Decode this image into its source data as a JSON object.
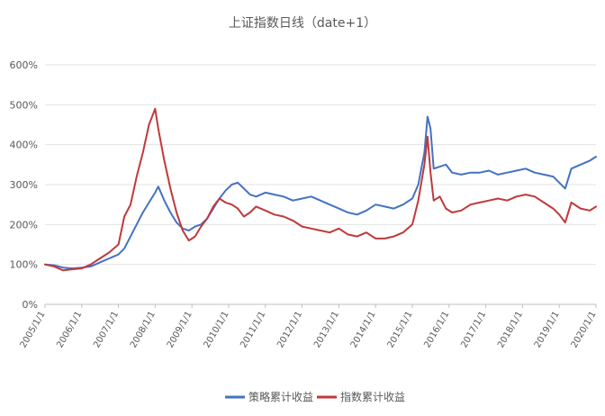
{
  "chart_data": {
    "type": "line",
    "title": "上证指数日线（date+1）",
    "xlabel": "",
    "ylabel": "",
    "ylim": [
      0,
      600
    ],
    "ytick_labels": [
      "0%",
      "100%",
      "200%",
      "300%",
      "400%",
      "500%",
      "600%"
    ],
    "grid": true,
    "legend_position": "bottom",
    "x_range": [
      "2005/1/1",
      "2020/1/1"
    ],
    "x_tick_labels": [
      "2005/1/1",
      "2006/1/1",
      "2007/1/1",
      "2008/1/1",
      "2009/1/1",
      "2010/1/1",
      "2011/1/1",
      "2012/1/1",
      "2013/1/1",
      "2014/1/1",
      "2015/1/1",
      "2016/1/1",
      "2017/1/1",
      "2018/1/1",
      "2019/1/1",
      "2020/1/1"
    ],
    "series": [
      {
        "name": "策略累计收益",
        "color": "#4472c4",
        "x": [
          "2005/1/1",
          "2005/4/1",
          "2005/7/1",
          "2005/10/1",
          "2006/1/1",
          "2006/4/1",
          "2006/7/1",
          "2006/10/1",
          "2007/1/1",
          "2007/3/1",
          "2007/5/1",
          "2007/7/1",
          "2007/9/1",
          "2007/11/1",
          "2008/1/1",
          "2008/2/1",
          "2008/4/1",
          "2008/6/1",
          "2008/8/1",
          "2008/10/1",
          "2008/12/1",
          "2009/2/1",
          "2009/4/1",
          "2009/6/1",
          "2009/8/1",
          "2009/10/1",
          "2009/12/1",
          "2010/2/1",
          "2010/4/1",
          "2010/6/1",
          "2010/8/1",
          "2010/10/1",
          "2011/1/1",
          "2011/4/1",
          "2011/7/1",
          "2011/10/1",
          "2012/1/1",
          "2012/4/1",
          "2012/7/1",
          "2012/10/1",
          "2013/1/1",
          "2013/4/1",
          "2013/7/1",
          "2013/10/1",
          "2014/1/1",
          "2014/4/1",
          "2014/7/1",
          "2014/10/1",
          "2015/1/1",
          "2015/3/1",
          "2015/5/1",
          "2015/6/1",
          "2015/7/1",
          "2015/8/1",
          "2015/10/1",
          "2015/12/1",
          "2016/2/1",
          "2016/5/1",
          "2016/8/1",
          "2016/11/1",
          "2017/2/1",
          "2017/5/1",
          "2017/8/1",
          "2017/11/1",
          "2018/2/1",
          "2018/5/1",
          "2018/8/1",
          "2018/11/1",
          "2019/1/1",
          "2019/3/1",
          "2019/5/1",
          "2019/8/1",
          "2019/11/1",
          "2020/1/1"
        ],
        "values": [
          100,
          98,
          92,
          90,
          92,
          95,
          105,
          115,
          125,
          140,
          170,
          200,
          230,
          255,
          280,
          295,
          260,
          230,
          205,
          190,
          185,
          195,
          200,
          215,
          240,
          265,
          285,
          300,
          305,
          290,
          275,
          270,
          280,
          275,
          270,
          260,
          265,
          270,
          260,
          250,
          240,
          230,
          225,
          235,
          250,
          245,
          240,
          250,
          265,
          300,
          380,
          470,
          440,
          340,
          345,
          350,
          330,
          325,
          330,
          330,
          335,
          325,
          330,
          335,
          340,
          330,
          325,
          320,
          305,
          290,
          340,
          350,
          360,
          370
        ]
      },
      {
        "name": "指数累计收益",
        "color": "#c0393b",
        "x": [
          "2005/1/1",
          "2005/4/1",
          "2005/7/1",
          "2005/10/1",
          "2006/1/1",
          "2006/4/1",
          "2006/7/1",
          "2006/10/1",
          "2007/1/1",
          "2007/3/1",
          "2007/5/1",
          "2007/7/1",
          "2007/9/1",
          "2007/11/1",
          "2008/1/1",
          "2008/2/1",
          "2008/4/1",
          "2008/6/1",
          "2008/8/1",
          "2008/10/1",
          "2008/12/1",
          "2009/2/1",
          "2009/4/1",
          "2009/6/1",
          "2009/8/1",
          "2009/10/1",
          "2009/12/1",
          "2010/2/1",
          "2010/4/1",
          "2010/6/1",
          "2010/8/1",
          "2010/10/1",
          "2011/1/1",
          "2011/4/1",
          "2011/7/1",
          "2011/10/1",
          "2012/1/1",
          "2012/4/1",
          "2012/7/1",
          "2012/10/1",
          "2013/1/1",
          "2013/4/1",
          "2013/7/1",
          "2013/10/1",
          "2014/1/1",
          "2014/4/1",
          "2014/7/1",
          "2014/10/1",
          "2015/1/1",
          "2015/3/1",
          "2015/5/1",
          "2015/6/1",
          "2015/7/1",
          "2015/8/1",
          "2015/10/1",
          "2015/12/1",
          "2016/2/1",
          "2016/5/1",
          "2016/8/1",
          "2016/11/1",
          "2017/2/1",
          "2017/5/1",
          "2017/8/1",
          "2017/11/1",
          "2018/2/1",
          "2018/5/1",
          "2018/8/1",
          "2018/11/1",
          "2019/1/1",
          "2019/3/1",
          "2019/5/1",
          "2019/8/1",
          "2019/11/1",
          "2020/1/1"
        ],
        "values": [
          100,
          95,
          85,
          88,
          90,
          100,
          115,
          130,
          150,
          220,
          250,
          320,
          380,
          450,
          490,
          440,
          360,
          290,
          230,
          185,
          160,
          170,
          195,
          215,
          245,
          265,
          255,
          250,
          240,
          220,
          230,
          245,
          235,
          225,
          220,
          210,
          195,
          190,
          185,
          180,
          190,
          175,
          170,
          180,
          165,
          165,
          170,
          180,
          200,
          260,
          350,
          420,
          330,
          260,
          270,
          240,
          230,
          235,
          250,
          255,
          260,
          265,
          260,
          270,
          275,
          270,
          255,
          240,
          225,
          205,
          255,
          240,
          235,
          245
        ]
      }
    ]
  }
}
